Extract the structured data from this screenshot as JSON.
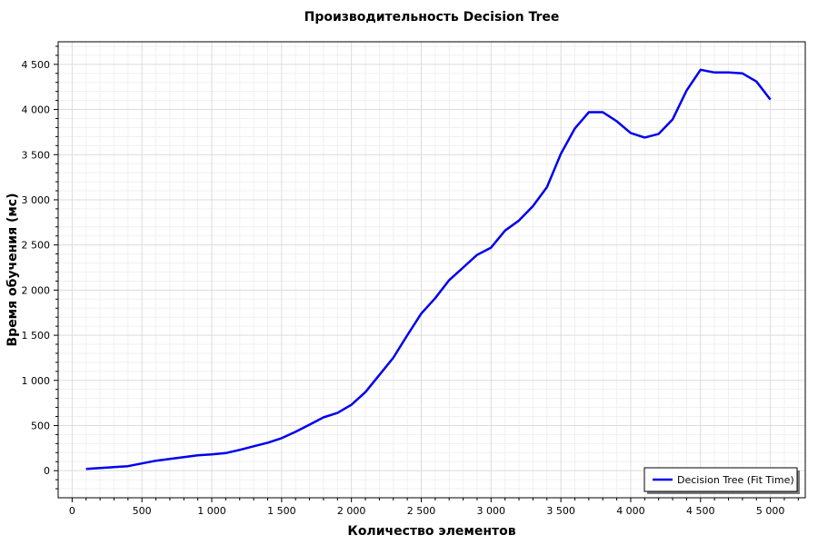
{
  "chart_data": {
    "type": "line",
    "title": "Производительность Decision Tree",
    "xlabel": "Количество элементов",
    "ylabel": "Время обучения (мс)",
    "xlim": [
      -100,
      5250
    ],
    "ylim": [
      -300,
      4750
    ],
    "x_ticks": [
      0,
      500,
      1000,
      1500,
      2000,
      2500,
      3000,
      3500,
      4000,
      4500,
      5000
    ],
    "x_tick_labels": [
      "0",
      "500",
      "1 000",
      "1 500",
      "2 000",
      "2 500",
      "3 000",
      "3 500",
      "4 000",
      "4 500",
      "5 000"
    ],
    "y_ticks": [
      0,
      500,
      1000,
      1500,
      2000,
      2500,
      3000,
      3500,
      4000,
      4500
    ],
    "y_tick_labels": [
      "0",
      "500",
      "1 000",
      "1 500",
      "2 000",
      "2 500",
      "3 000",
      "3 500",
      "4 000",
      "4 500"
    ],
    "grid": true,
    "legend_position": "bottom-right",
    "series": [
      {
        "name": "Decision Tree (Fit Time)",
        "color": "#0000ee",
        "x": [
          100,
          200,
          300,
          400,
          500,
          600,
          700,
          800,
          900,
          1000,
          1100,
          1200,
          1300,
          1400,
          1500,
          1600,
          1700,
          1800,
          1900,
          2000,
          2100,
          2200,
          2300,
          2400,
          2500,
          2600,
          2700,
          2800,
          2900,
          3000,
          3100,
          3200,
          3300,
          3400,
          3500,
          3600,
          3700,
          3800,
          3900,
          4000,
          4100,
          4200,
          4300,
          4400,
          4500,
          4600,
          4700,
          4800,
          4900,
          5000
        ],
        "y": [
          20,
          30,
          40,
          50,
          80,
          110,
          130,
          150,
          170,
          180,
          195,
          230,
          270,
          310,
          360,
          430,
          510,
          590,
          640,
          730,
          870,
          1060,
          1250,
          1500,
          1740,
          1910,
          2110,
          2250,
          2390,
          2470,
          2660,
          2770,
          2930,
          3140,
          3510,
          3790,
          3970,
          3970,
          3870,
          3740,
          3690,
          3730,
          3890,
          4210,
          4440,
          4410,
          4410,
          4400,
          4310,
          4110
        ]
      }
    ]
  }
}
